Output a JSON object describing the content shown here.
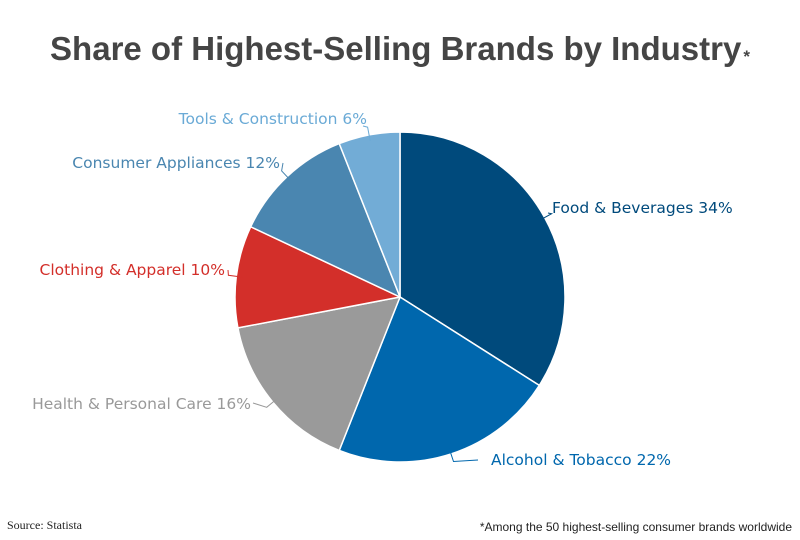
{
  "title": "Share of Highest-Selling Brands by Industry",
  "title_mark": "*",
  "source": "Source: Statista",
  "footnote": "*Among the 50 highest-selling consumer brands worldwide",
  "chart_data": {
    "type": "pie",
    "title": "Share of Highest-Selling Brands by Industry",
    "unit": "%",
    "slices": [
      {
        "label": "Food & Beverages 34%",
        "name": "Food & Beverages",
        "value": 34,
        "color": "#004a7c"
      },
      {
        "label": "Alcohol & Tobacco 22%",
        "name": "Alcohol & Tobacco",
        "value": 22,
        "color": "#0067ad"
      },
      {
        "label": "Health & Personal Care 16%",
        "name": "Health & Personal Care",
        "value": 16,
        "color": "#9a9a9a"
      },
      {
        "label": "Clothing & Apparel 10%",
        "name": "Clothing & Apparel",
        "value": 10,
        "color": "#d32f2a"
      },
      {
        "label": "Consumer Appliances 12%",
        "name": "Consumer Appliances",
        "value": 12,
        "color": "#4a86b0"
      },
      {
        "label": "Tools & Construction 6%",
        "name": "Tools & Construction",
        "value": 6,
        "color": "#72acd6"
      }
    ],
    "label_colors": [
      "#004a7c",
      "#0067ad",
      "#999999",
      "#d32f2a",
      "#4a86b0",
      "#6aaad6"
    ]
  }
}
